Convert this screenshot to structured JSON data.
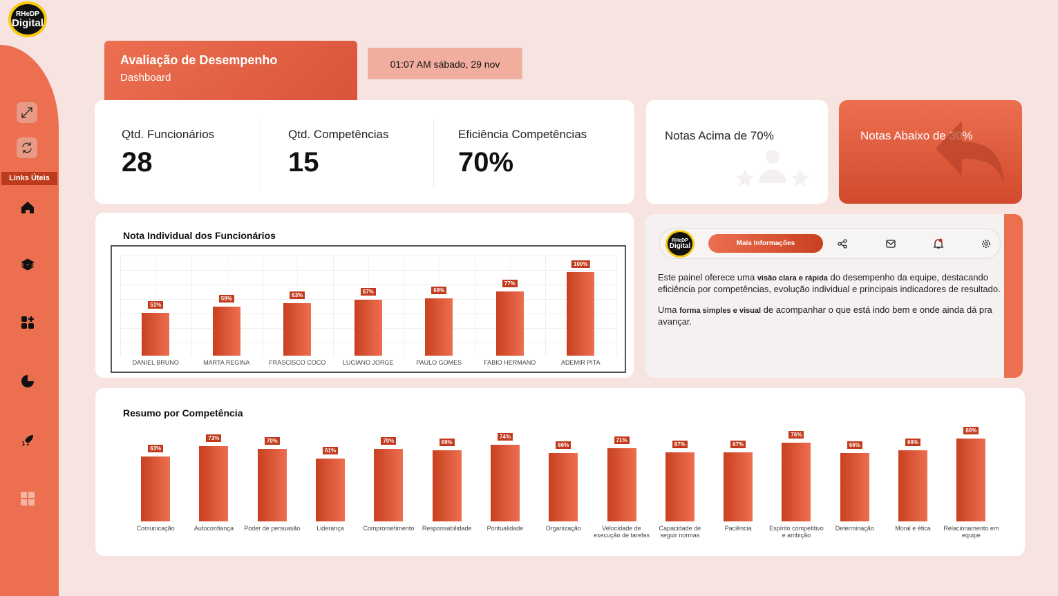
{
  "sidebar": {
    "logo_top": "RHeDP",
    "logo_bottom": "Digital",
    "links_label": "Links Úteis"
  },
  "header": {
    "title": "Avaliação de Desempenho",
    "subtitle": "Dashboard"
  },
  "datetime": "01:07 AM  sábado, 29 nov",
  "kpis": [
    {
      "label": "Qtd. Funcionários",
      "value": "28"
    },
    {
      "label": "Qtd. Competências",
      "value": "15"
    },
    {
      "label": "Eficiência Competências",
      "value": "70%"
    }
  ],
  "cards": {
    "above": "Notas Acima de 70%",
    "below": "Notas Abaixo de 30%"
  },
  "info": {
    "button": "Mais Informações",
    "p1a": "Este painel oferece uma ",
    "p1b": "visão clara e rápida",
    "p1c": " do desempenho da equipe, destacando eficiência por competências, evolução individual e principais indicadores de resultado.",
    "p2a": "Uma ",
    "p2b": "forma simples e visual",
    "p2c": " de acompanhar o que está indo bem e onde ainda dá pra avançar."
  },
  "colors": {
    "accent": "#ec6f50",
    "dark": "#c23a1b",
    "bg": "#f7e3e0"
  },
  "chart_data": [
    {
      "type": "bar",
      "title": "Nota Individual dos Funcionários",
      "categories": [
        "DANIEL BRUNO",
        "MARTA REGINA",
        "FRASCISCO COCO",
        "LUCIANO JORGE",
        "PAULO GOMES",
        "FABIO HERMANO",
        "ADEMIR PITA"
      ],
      "values": [
        51,
        59,
        63,
        67,
        69,
        77,
        100
      ],
      "labels": [
        "51%",
        "59%",
        "63%",
        "67%",
        "69%",
        "77%",
        "100%"
      ],
      "ylim": [
        0,
        100
      ]
    },
    {
      "type": "bar",
      "title": "Resumo por Competência",
      "categories": [
        "Comunicação",
        "Autoconfiança",
        "Poder de persuasão",
        "Liderança",
        "Comprometimento",
        "Responsabilidade",
        "Pontualidade",
        "Organização",
        "Velocidade de execução de tarefas",
        "Capacidade de seguir normas",
        "Paciência",
        "Espírito competitivo e ambição",
        "Determinação",
        "Moral e ética",
        "Relacionamento em equipe"
      ],
      "values": [
        63,
        73,
        70,
        61,
        70,
        69,
        74,
        66,
        71,
        67,
        67,
        76,
        66,
        69,
        80
      ],
      "labels": [
        "63%",
        "73%",
        "70%",
        "61%",
        "70%",
        "69%",
        "74%",
        "66%",
        "71%",
        "67%",
        "67%",
        "76%",
        "66%",
        "69%",
        "80%"
      ],
      "ylim": [
        0,
        100
      ]
    }
  ]
}
